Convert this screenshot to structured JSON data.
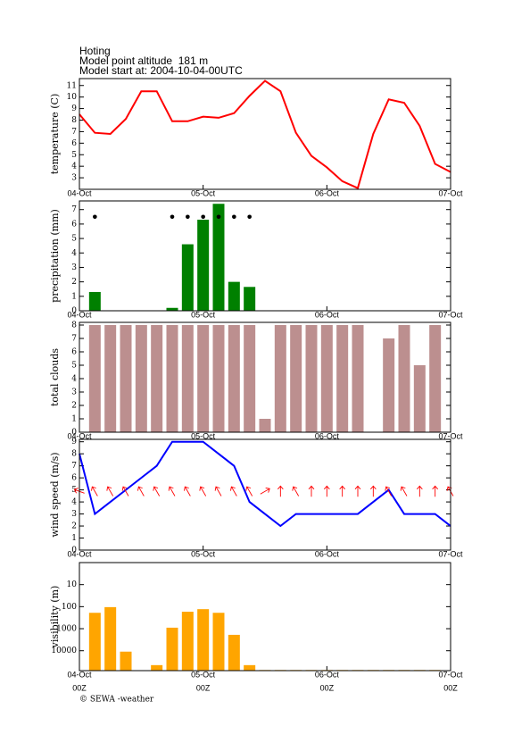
{
  "header": {
    "station": "Hoting",
    "altitude": "Model point altitude  181 m",
    "start": "Model start at: 2004-10-04-00UTC"
  },
  "footer": {
    "tick_sublabels": [
      "00Z",
      "00Z",
      "00Z",
      "00Z"
    ],
    "credit": "© SEWA -weather"
  },
  "chart_data": [
    {
      "type": "line",
      "ylabel": "temperature (C)",
      "color": "#ff0000",
      "x": [
        0,
        3,
        6,
        9,
        12,
        15,
        18,
        21,
        24,
        27,
        30,
        33,
        36,
        39,
        42,
        45,
        48,
        51,
        54,
        57,
        60,
        63,
        66,
        69,
        72
      ],
      "values": [
        8.5,
        6.9,
        6.8,
        8.1,
        10.5,
        10.5,
        7.9,
        7.9,
        8.3,
        8.2,
        8.6,
        10.1,
        11.4,
        10.5,
        6.9,
        4.9,
        3.9,
        2.7,
        2.1,
        6.8,
        9.8,
        9.5,
        7.5,
        4.2,
        3.5
      ],
      "xlim": [
        0,
        72
      ],
      "xticks": [
        {
          "value": 0,
          "label": "04-Oct"
        },
        {
          "value": 24,
          "label": "05-Oct"
        },
        {
          "value": 48,
          "label": "06-Oct"
        },
        {
          "value": 72,
          "label": "07-Oct"
        }
      ],
      "ylim": [
        2,
        11.6
      ],
      "yticks": [
        3,
        4,
        5,
        6,
        7,
        8,
        9,
        10,
        11
      ]
    },
    {
      "type": "bar",
      "ylabel": "precipitation (mm)",
      "color": "#008000",
      "x": [
        0,
        3,
        6,
        9,
        12,
        15,
        18,
        21,
        24,
        27,
        30,
        33,
        36,
        39,
        42,
        45,
        48,
        51,
        54,
        57,
        60,
        63,
        66,
        69,
        72
      ],
      "values": [
        0,
        1.3,
        0,
        0,
        0,
        0,
        0.2,
        4.6,
        6.3,
        7.4,
        2.0,
        1.65,
        0,
        0,
        0,
        0,
        0,
        0,
        0,
        0,
        0,
        0,
        0,
        0,
        0
      ],
      "markers": [
        null,
        6.5,
        null,
        null,
        null,
        null,
        6.5,
        6.5,
        6.5,
        6.5,
        6.5,
        6.5,
        null,
        null,
        null,
        null,
        null,
        null,
        null,
        null,
        null,
        null,
        null,
        null,
        null
      ],
      "xlim": [
        0,
        72
      ],
      "xticks": [
        {
          "value": 0,
          "label": "04-Oct"
        },
        {
          "value": 24,
          "label": "05-Oct"
        },
        {
          "value": 48,
          "label": "06-Oct"
        },
        {
          "value": 72,
          "label": "07-Oct"
        }
      ],
      "ylim": [
        0,
        7.6
      ],
      "yticks": [
        0,
        1,
        2,
        3,
        4,
        5,
        6,
        7
      ]
    },
    {
      "type": "bar",
      "ylabel": "total clouds",
      "color": "#bc8f8f",
      "x": [
        0,
        3,
        6,
        9,
        12,
        15,
        18,
        21,
        24,
        27,
        30,
        33,
        36,
        39,
        42,
        45,
        48,
        51,
        54,
        57,
        60,
        63,
        66,
        69,
        72
      ],
      "values": [
        null,
        8,
        8,
        8,
        8,
        8,
        8,
        8,
        8,
        8,
        8,
        8,
        1,
        8,
        8,
        8,
        8,
        8,
        8,
        0,
        7,
        8,
        5,
        8,
        null
      ],
      "xlim": [
        0,
        72
      ],
      "xticks": [
        {
          "value": 0,
          "label": "04-Oct"
        },
        {
          "value": 24,
          "label": "05-Oct"
        },
        {
          "value": 48,
          "label": "06-Oct"
        },
        {
          "value": 72,
          "label": "07-Oct"
        }
      ],
      "ylim": [
        0,
        8.2
      ],
      "yticks": [
        0,
        1,
        2,
        3,
        4,
        5,
        6,
        7,
        8
      ]
    },
    {
      "type": "line",
      "ylabel": "wind speed (m/s)",
      "color": "#0000ff",
      "x": [
        0,
        3,
        6,
        9,
        12,
        15,
        18,
        21,
        24,
        27,
        30,
        33,
        36,
        39,
        42,
        45,
        48,
        51,
        54,
        57,
        60,
        63,
        66,
        69,
        72
      ],
      "values": [
        8,
        3,
        4,
        5,
        6,
        7,
        9,
        9,
        9,
        8,
        7,
        4,
        3,
        2,
        3,
        3,
        3,
        3,
        3,
        4,
        5,
        3,
        3,
        3,
        2
      ],
      "arrows": {
        "color": "#ff0000",
        "directions": [
          290,
          330,
          330,
          330,
          330,
          330,
          330,
          330,
          330,
          330,
          330,
          330,
          60,
          0,
          330,
          0,
          0,
          0,
          0,
          0,
          330,
          330,
          0,
          0,
          330
        ]
      },
      "xlim": [
        0,
        72
      ],
      "xticks": [
        {
          "value": 0,
          "label": "04-Oct"
        },
        {
          "value": 24,
          "label": "05-Oct"
        },
        {
          "value": 48,
          "label": "06-Oct"
        },
        {
          "value": 72,
          "label": "07-Oct"
        }
      ],
      "ylim": [
        0,
        9.2
      ],
      "yticks": [
        0,
        1,
        2,
        3,
        4,
        5,
        6,
        7,
        8,
        9
      ]
    },
    {
      "type": "bar",
      "ylabel": "visibility (m)",
      "color": "#ffa500",
      "log_scale": true,
      "inverted": true,
      "x": [
        0,
        3,
        6,
        9,
        12,
        15,
        18,
        21,
        24,
        27,
        30,
        33,
        36,
        39,
        42,
        45,
        48,
        51,
        54,
        57,
        60,
        63,
        66,
        69,
        72
      ],
      "values": [
        null,
        190,
        105,
        11000,
        null,
        45000,
        900,
        170,
        130,
        190,
        1900,
        45000,
        75000,
        75000,
        75000,
        75000,
        75000,
        75000,
        75000,
        75000,
        75000,
        75000,
        75000,
        75000,
        null
      ],
      "xlim": [
        0,
        72
      ],
      "xticks": [
        {
          "value": 0,
          "label": "04-Oct"
        },
        {
          "value": 24,
          "label": "05-Oct"
        },
        {
          "value": 48,
          "label": "06-Oct"
        },
        {
          "value": 72,
          "label": "07-Oct"
        }
      ],
      "ylim": [
        1,
        80000
      ],
      "yticks": [
        10,
        100,
        1000,
        10000
      ]
    }
  ]
}
